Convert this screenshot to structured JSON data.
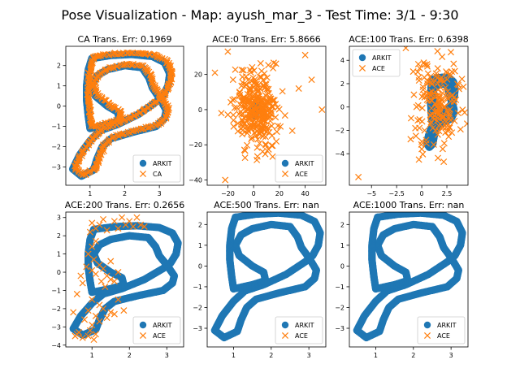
{
  "title": "Pose Visualization - Map: ayush_mar_3 - Test Time: 3/1 - 9:30",
  "colors": {
    "arkit": "#1f77b4",
    "pred": "#ff7f0e"
  },
  "chart_data": [
    {
      "type": "scatter",
      "title": "CA Trans. Err: 0.1969",
      "xlim": [
        0.3,
        3.7
      ],
      "ylim": [
        -3.9,
        2.95
      ],
      "xticks": [
        1,
        2,
        3
      ],
      "yticks": [
        -3,
        -2,
        -1,
        0,
        1,
        2
      ],
      "legend": {
        "position": "bottom-right",
        "entries": [
          "ARKIT",
          "CA"
        ]
      },
      "series": [
        {
          "name": "ARKIT",
          "marker": "circle",
          "path": "arkit"
        },
        {
          "name": "CA",
          "marker": "x",
          "path": "arkit-offset"
        }
      ]
    },
    {
      "type": "scatter",
      "title": "ACE:0 Trans. Err: 5.8666",
      "xlim": [
        -36,
        56
      ],
      "ylim": [
        -43,
        36
      ],
      "xticks": [
        -20,
        0,
        20,
        40
      ],
      "yticks": [
        -40,
        -20,
        0,
        20
      ],
      "legend": {
        "position": "bottom-right",
        "entries": [
          "ARKIT",
          "ACE"
        ]
      },
      "series": [
        {
          "name": "ARKIT",
          "marker": "circle",
          "path": "arkit"
        },
        {
          "name": "ACE",
          "marker": "x",
          "cloud": {
            "center": [
              2,
              1
            ],
            "spread": [
              8,
              11
            ],
            "count": 320
          },
          "outliers": [
            [
              -30,
              21
            ],
            [
              -20,
              33
            ],
            [
              -22,
              -40
            ],
            [
              53,
              0
            ],
            [
              40,
              31
            ],
            [
              30,
              -12
            ],
            [
              35,
              12
            ],
            [
              -25,
              -2
            ],
            [
              45,
              17
            ]
          ]
        }
      ]
    },
    {
      "type": "scatter",
      "title": "ACE:100 Trans. Err: 0.6398",
      "xlim": [
        -7.2,
        4.6
      ],
      "ylim": [
        -6.7,
        5.2
      ],
      "xticks": [
        -5.0,
        -2.5,
        0.0,
        2.5
      ],
      "yticks": [
        -4,
        -2,
        0,
        2,
        4
      ],
      "legend": {
        "position": "top-left",
        "entries": [
          "ARKIT",
          "ACE"
        ]
      },
      "series": [
        {
          "name": "ARKIT",
          "marker": "circle",
          "path": "arkit"
        },
        {
          "name": "ACE",
          "marker": "x",
          "cloud": {
            "center": [
              1.5,
              0
            ],
            "spread": [
              1.1,
              2.1
            ],
            "count": 170
          },
          "outliers": [
            [
              -6.3,
              -6
            ],
            [
              -0.4,
              3
            ],
            [
              2.9,
              4.7
            ],
            [
              4,
              2.4
            ],
            [
              0.2,
              3.8
            ],
            [
              3.2,
              0.5
            ],
            [
              0.0,
              -3.6
            ]
          ]
        }
      ]
    },
    {
      "type": "scatter",
      "title": "ACE:200 Trans. Err: 0.2656",
      "xlim": [
        0.3,
        3.45
      ],
      "ylim": [
        -4.1,
        3.3
      ],
      "xticks": [
        1,
        2,
        3
      ],
      "yticks": [
        -4,
        -3,
        -2,
        -1,
        0,
        1,
        2,
        3
      ],
      "legend": {
        "position": "bottom-right",
        "entries": [
          "ARKIT",
          "ACE"
        ]
      },
      "series": [
        {
          "name": "ARKIT",
          "marker": "circle",
          "path": "arkit"
        },
        {
          "name": "ACE",
          "marker": "x",
          "points": [
            [
              1.0,
              2.7
            ],
            [
              1.1,
              2.4
            ],
            [
              0.95,
              2.2
            ],
            [
              1.2,
              2.6
            ],
            [
              1.4,
              2.3
            ],
            [
              1.6,
              2.8
            ],
            [
              1.8,
              3.0
            ],
            [
              1.9,
              2.6
            ],
            [
              2.0,
              2.8
            ],
            [
              2.1,
              2.5
            ],
            [
              2.3,
              2.6
            ],
            [
              2.4,
              2.5
            ],
            [
              1.7,
              2.4
            ],
            [
              2.2,
              3.0
            ],
            [
              1.3,
              2.9
            ],
            [
              1.0,
              1.4
            ],
            [
              1.1,
              1.7
            ],
            [
              0.9,
              1.0
            ],
            [
              1.05,
              0.7
            ],
            [
              1.2,
              0.4
            ],
            [
              1.3,
              0.2
            ],
            [
              1.4,
              -0.2
            ],
            [
              1.5,
              -0.4
            ],
            [
              1.1,
              -0.1
            ],
            [
              1.0,
              0.1
            ],
            [
              1.25,
              -0.5
            ],
            [
              1.35,
              -0.8
            ],
            [
              1.6,
              -0.5
            ],
            [
              1.5,
              0.6
            ],
            [
              1.7,
              0.0
            ],
            [
              0.7,
              -0.2
            ],
            [
              0.75,
              -0.6
            ],
            [
              0.85,
              0.3
            ],
            [
              0.6,
              -1.2
            ],
            [
              1.0,
              -1.5
            ],
            [
              1.2,
              -1.8
            ],
            [
              0.9,
              -2.1
            ],
            [
              1.1,
              -2.4
            ],
            [
              1.3,
              -2.0
            ],
            [
              1.5,
              -2.2
            ],
            [
              0.8,
              -2.6
            ],
            [
              1.0,
              -2.9
            ],
            [
              1.2,
              -2.7
            ],
            [
              1.4,
              -2.5
            ],
            [
              1.6,
              -2.3
            ],
            [
              0.5,
              -2.2
            ],
            [
              0.55,
              -3.5
            ],
            [
              0.65,
              -3.3
            ],
            [
              0.75,
              -3.6
            ],
            [
              0.9,
              -3.5
            ],
            [
              1.1,
              -3.4
            ],
            [
              1.05,
              -3.7
            ],
            [
              0.95,
              -3.2
            ],
            [
              0.6,
              -3.4
            ],
            [
              1.7,
              -1.5
            ],
            [
              1.85,
              -2.1
            ]
          ]
        }
      ]
    },
    {
      "type": "scatter",
      "title": "ACE:500 Trans. Err: nan",
      "xlim": [
        0.3,
        3.45
      ],
      "ylim": [
        -3.9,
        2.6
      ],
      "xticks": [
        1,
        2,
        3
      ],
      "yticks": [
        -3,
        -2,
        -1,
        0,
        1,
        2
      ],
      "legend": {
        "position": "bottom-right",
        "entries": [
          "ARKIT",
          "ACE"
        ]
      },
      "series": [
        {
          "name": "ARKIT",
          "marker": "circle",
          "path": "arkit"
        },
        {
          "name": "ACE",
          "marker": "x",
          "points": []
        }
      ]
    },
    {
      "type": "scatter",
      "title": "ACE:1000 Trans. Err: nan",
      "xlim": [
        0.3,
        3.45
      ],
      "ylim": [
        -3.9,
        2.6
      ],
      "xticks": [
        1,
        2,
        3
      ],
      "yticks": [
        -3,
        -2,
        -1,
        0,
        1,
        2
      ],
      "legend": {
        "position": "bottom-right",
        "entries": [
          "ARKIT",
          "ACE"
        ]
      },
      "series": [
        {
          "name": "ARKIT",
          "marker": "circle",
          "path": "arkit"
        },
        {
          "name": "ACE",
          "marker": "x",
          "points": []
        }
      ]
    }
  ]
}
